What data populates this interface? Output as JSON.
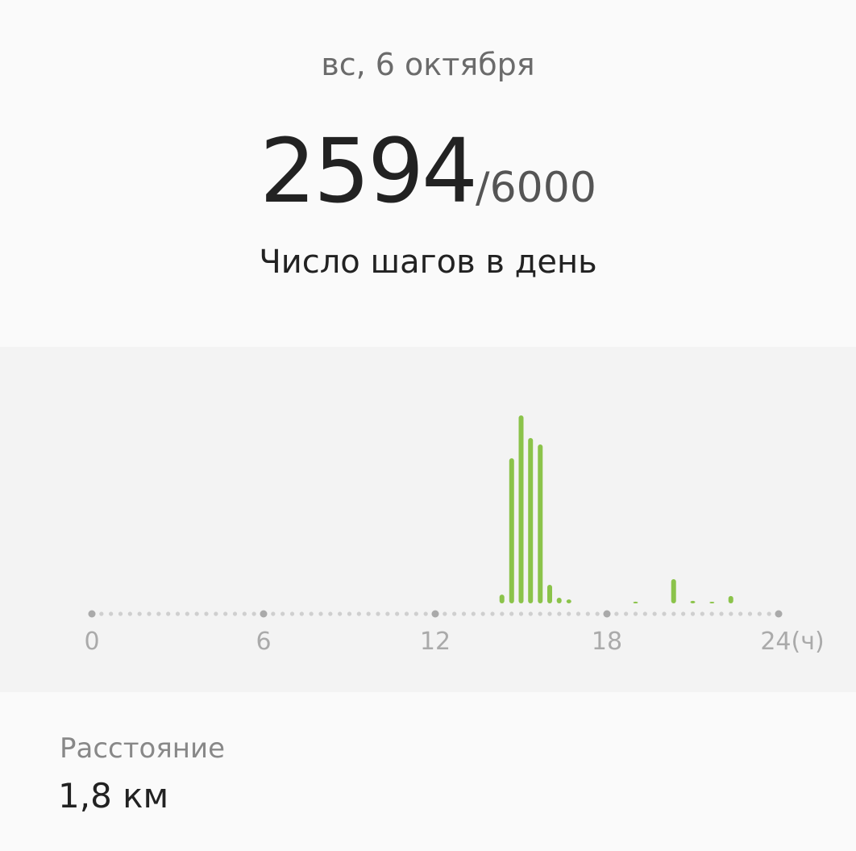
{
  "header": {
    "date": "вс, 6 октября"
  },
  "steps": {
    "count": "2594",
    "goal": "/6000",
    "label": "Число шагов в день"
  },
  "distance": {
    "label": "Расстояние",
    "value": "1,8 км"
  },
  "chart_data": {
    "type": "bar",
    "xlim": [
      0,
      24
    ],
    "x_ticks": [
      "0",
      "6",
      "12",
      "18",
      "24(ч)"
    ],
    "bar_color": "#8bc34a",
    "x": [
      14.33,
      14.67,
      15.0,
      15.33,
      15.67,
      16.0,
      16.33,
      16.67,
      19.0,
      20.33,
      21.0,
      21.67,
      22.33
    ],
    "values": [
      31,
      515,
      667,
      587,
      564,
      66,
      20,
      14,
      6,
      86,
      9,
      3,
      26
    ]
  }
}
